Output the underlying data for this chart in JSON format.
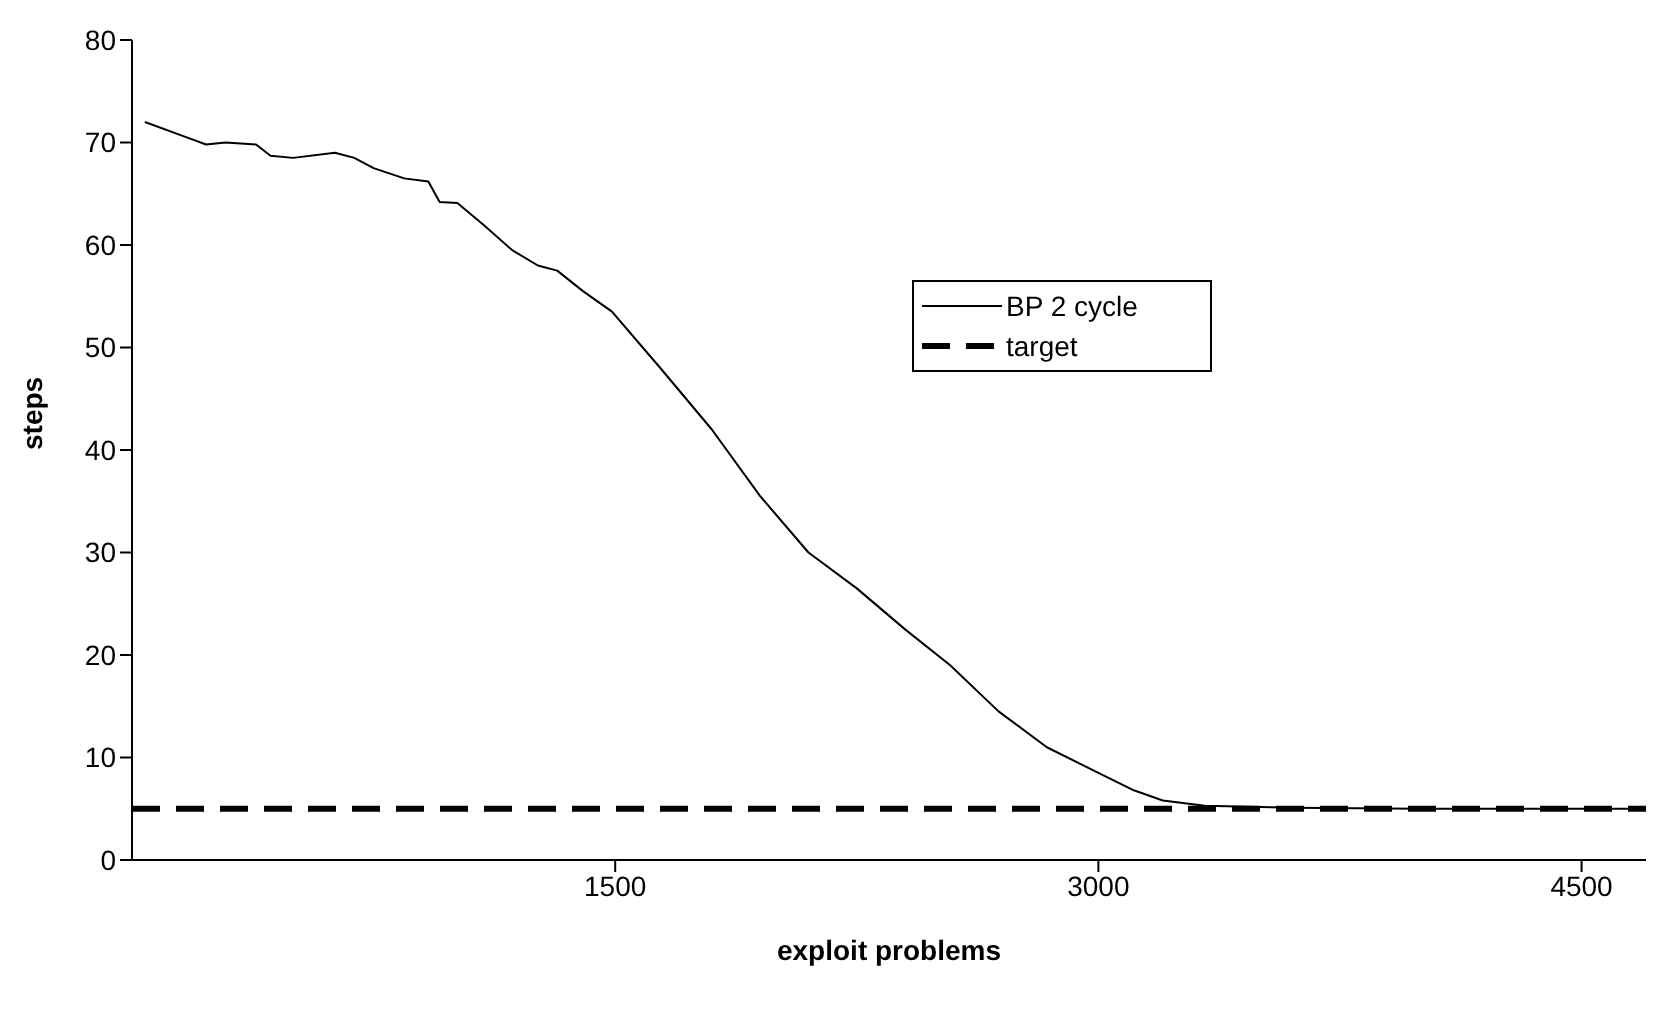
{
  "chart_data": {
    "type": "line",
    "xlabel": "exploit problems",
    "ylabel": "steps",
    "xlim": [
      0,
      4700
    ],
    "xticks": [
      1500,
      3000,
      4500
    ],
    "ylim": [
      0,
      80
    ],
    "yticks": [
      0,
      10,
      20,
      30,
      40,
      50,
      60,
      70,
      80
    ],
    "legend": "right",
    "marker": "none",
    "series": [
      {
        "name": "BP 2 cycle",
        "color": "#000000",
        "line_style": "solid",
        "x": [
          40,
          170,
          230,
          290,
          385,
          430,
          500,
          630,
          690,
          750,
          845,
          920,
          955,
          1010,
          1090,
          1180,
          1260,
          1320,
          1400,
          1490,
          1640,
          1800,
          1950,
          2100,
          2250,
          2400,
          2540,
          2690,
          2840,
          3000,
          3110,
          3200,
          3330,
          3600,
          4000,
          4700
        ],
        "values": [
          72,
          70.5,
          69.8,
          70,
          69.8,
          68.7,
          68.5,
          69,
          68.5,
          67.5,
          66.5,
          66.2,
          64.2,
          64.1,
          62,
          59.5,
          58,
          57.5,
          55.5,
          53.5,
          48,
          42,
          35.5,
          30,
          26.5,
          22.5,
          19,
          14.5,
          11,
          8.5,
          6.8,
          5.8,
          5.3,
          5.1,
          5,
          5
        ]
      },
      {
        "name": "target",
        "color": "#000000",
        "line_style": "dashed",
        "x": [
          0,
          4700
        ],
        "values": [
          5,
          5
        ]
      }
    ]
  }
}
